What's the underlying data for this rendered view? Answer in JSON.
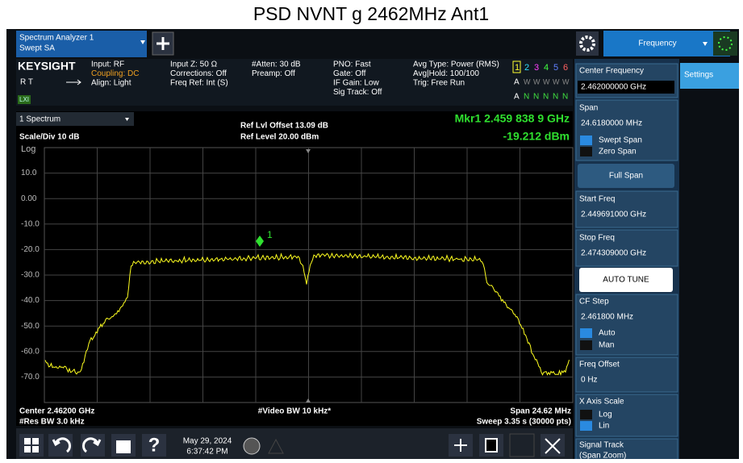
{
  "header": {
    "title": "PSD NVNT g 2462MHz Ant1"
  },
  "toolbar": {
    "tab_line1": "Spectrum Analyzer 1",
    "tab_line2": "Swept SA",
    "menu": "Frequency"
  },
  "info": {
    "brand": "KEYSIGHT",
    "rt": "R  T",
    "lxi": "LXI",
    "col1": [
      "Input: RF",
      "Coupling: DC",
      "Align: Light"
    ],
    "col2": [
      "Input Z: 50 Ω",
      "Corrections: Off",
      "Freq Ref: Int (S)"
    ],
    "col3": [
      "#Atten: 30 dB",
      "Preamp: Off"
    ],
    "col4": [
      "PNO: Fast",
      "Gate: Off",
      "IF Gain: Low",
      "Sig Track: Off"
    ],
    "col5": [
      "Avg Type: Power (RMS)",
      "Avg|Hold: 100/100",
      "Trig: Free Run"
    ],
    "traces": [
      "1",
      "2",
      "3",
      "4",
      "5",
      "6"
    ],
    "trace_types": [
      "A",
      "W",
      "W",
      "W",
      "W",
      "W"
    ],
    "trace_dets": [
      "A",
      "N",
      "N",
      "N",
      "N",
      "N"
    ]
  },
  "plot": {
    "window": "1 Spectrum",
    "scale": "Scale/Div 10 dB",
    "log": "Log",
    "offset": "Ref Lvl Offset 13.09 dB",
    "ref_level": "Ref Level 20.00 dBm",
    "marker_freq": "Mkr1  2.459 838 9 GHz",
    "marker_amp": "-19.212 dBm",
    "marker_label": "1",
    "y_labels": [
      "10.0",
      "0.00",
      "-10.0",
      "-20.0",
      "-30.0",
      "-40.0",
      "-50.0",
      "-60.0",
      "-70.0"
    ],
    "center": "Center 2.46200 GHz",
    "res_bw": "#Res BW 3.0 kHz",
    "video_bw": "#Video BW 10 kHz*",
    "span": "Span 24.62 MHz",
    "sweep": "Sweep 3.35 s (30000 pts)"
  },
  "taskbar": {
    "date": "May 29, 2024",
    "time": "6:37:42 PM"
  },
  "panel": {
    "settings": "Settings",
    "center_label": "Center Frequency",
    "center_value": "2.462000000 GHz",
    "span_label": "Span",
    "span_value": "24.6180000 MHz",
    "swept_span": "Swept Span",
    "zero_span": "Zero Span",
    "full_span": "Full Span",
    "start_label": "Start Freq",
    "start_value": "2.449691000 GHz",
    "stop_label": "Stop Freq",
    "stop_value": "2.474309000 GHz",
    "auto_tune": "AUTO TUNE",
    "cf_label": "CF Step",
    "cf_value": "2.461800 MHz",
    "auto": "Auto",
    "man": "Man",
    "offset_label": "Freq Offset",
    "offset_value": "0 Hz",
    "xscale_label": "X Axis Scale",
    "log": "Log",
    "lin": "Lin",
    "track_label": "Signal Track",
    "track_sub": "(Span Zoom)"
  }
}
